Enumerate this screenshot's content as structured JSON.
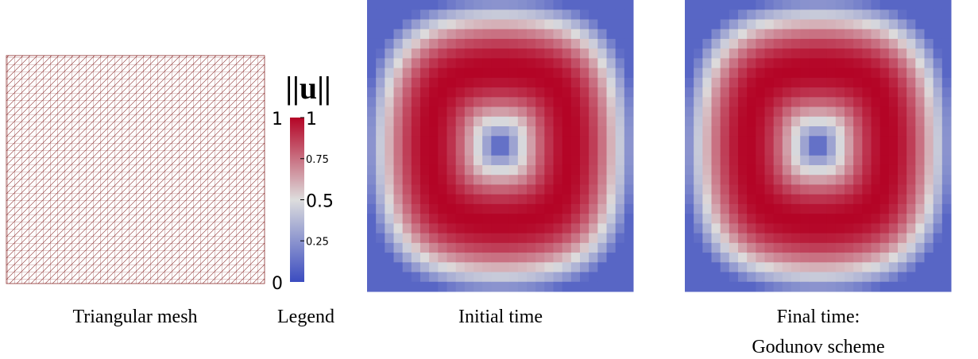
{
  "panels": [
    {
      "caption": "Triangular mesh"
    },
    {
      "caption": "Legend"
    },
    {
      "caption": "Initial time"
    },
    {
      "caption": [
        "Final time:",
        "Godunov scheme"
      ]
    }
  ],
  "legend": {
    "title": "||u||",
    "range": [
      0,
      1
    ],
    "ticks": [
      1,
      0.75,
      0.5,
      0.25
    ]
  }
}
